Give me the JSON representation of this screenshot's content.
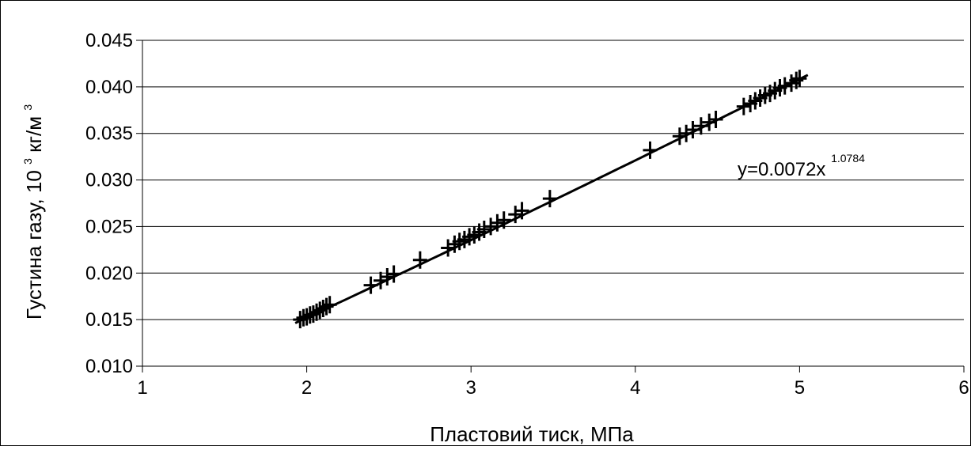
{
  "chart_data": {
    "type": "scatter",
    "x_ticks": [
      "1",
      "2",
      "3",
      "4",
      "5",
      "6"
    ],
    "y_ticks": [
      "0.010",
      "0.015",
      "0.020",
      "0.025",
      "0.030",
      "0.035",
      "0.040",
      "0.045"
    ],
    "xlim": [
      1,
      6
    ],
    "ylim": [
      0.01,
      0.045
    ],
    "grid": "horizontal",
    "xlabel": "Пластовий тиск, МПа",
    "ylabel_main": "Густина газу, 10",
    "ylabel_sup": "3",
    "ylabel_unit": " кг/м",
    "ylabel_unit_sup": "3",
    "trendline": {
      "coef": 0.0072,
      "exp": 1.0784,
      "x_range": [
        1.93,
        5.05
      ]
    },
    "equation_main": "y=0.0072x",
    "equation_sup": "1.0784",
    "points": [
      [
        1.96,
        0.015
      ],
      [
        1.98,
        0.0152
      ],
      [
        2.0,
        0.0153
      ],
      [
        2.02,
        0.0155
      ],
      [
        2.04,
        0.0156
      ],
      [
        2.06,
        0.0158
      ],
      [
        2.08,
        0.016
      ],
      [
        2.1,
        0.0162
      ],
      [
        2.12,
        0.0164
      ],
      [
        2.14,
        0.0166
      ],
      [
        2.39,
        0.0187
      ],
      [
        2.45,
        0.0192
      ],
      [
        2.49,
        0.0196
      ],
      [
        2.53,
        0.0199
      ],
      [
        2.69,
        0.0214
      ],
      [
        2.86,
        0.0227
      ],
      [
        2.9,
        0.0231
      ],
      [
        2.93,
        0.0234
      ],
      [
        2.96,
        0.0236
      ],
      [
        2.99,
        0.0239
      ],
      [
        3.02,
        0.0241
      ],
      [
        3.05,
        0.0244
      ],
      [
        3.08,
        0.0247
      ],
      [
        3.12,
        0.025
      ],
      [
        3.16,
        0.0254
      ],
      [
        3.2,
        0.0257
      ],
      [
        3.27,
        0.0263
      ],
      [
        3.31,
        0.0267
      ],
      [
        3.48,
        0.028
      ],
      [
        4.09,
        0.0332
      ],
      [
        4.27,
        0.0347
      ],
      [
        4.31,
        0.035
      ],
      [
        4.35,
        0.0354
      ],
      [
        4.4,
        0.0358
      ],
      [
        4.45,
        0.0362
      ],
      [
        4.49,
        0.0365
      ],
      [
        4.66,
        0.0379
      ],
      [
        4.7,
        0.0382
      ],
      [
        4.73,
        0.0385
      ],
      [
        4.76,
        0.0388
      ],
      [
        4.79,
        0.0391
      ],
      [
        4.82,
        0.0393
      ],
      [
        4.85,
        0.0396
      ],
      [
        4.88,
        0.0399
      ],
      [
        4.91,
        0.0401
      ],
      [
        4.95,
        0.0404
      ],
      [
        4.98,
        0.0407
      ],
      [
        5.0,
        0.0409
      ]
    ]
  }
}
